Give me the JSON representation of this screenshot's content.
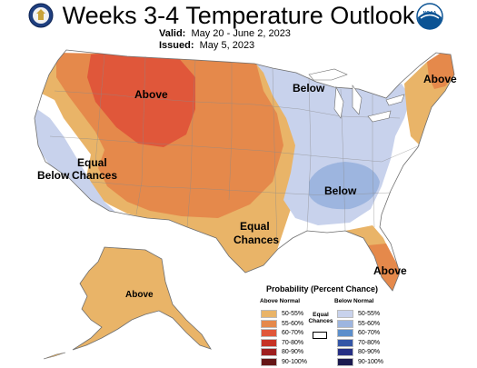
{
  "header": {
    "title": "Weeks 3-4 Temperature Outlook",
    "valid_label": "Valid:",
    "valid_value": "May 20 - June 2, 2023",
    "issued_label": "Issued:",
    "issued_value": "May 5, 2023"
  },
  "logos": {
    "left": "doc-seal-icon",
    "right": "noaa-logo-icon",
    "noaa_text": "NOAA"
  },
  "map_labels": {
    "above_west": "Above",
    "below_great_lakes": "Below",
    "above_new_england": "Above",
    "equal_chances_west_1": "Equal",
    "equal_chances_west_2": "Chances",
    "below_west_coast": "Below",
    "below_ohio_valley": "Below",
    "equal_chances_tx_1": "Equal",
    "equal_chances_tx_2": "Chances",
    "above_florida": "Above",
    "above_alaska": "Above"
  },
  "legend": {
    "title": "Probability (Percent Chance)",
    "above_header": "Above Normal",
    "below_header": "Below Normal",
    "equal_1": "Equal",
    "equal_2": "Chances",
    "above_items": [
      {
        "label": "50-55%",
        "color": "#E9B468"
      },
      {
        "label": "55-60%",
        "color": "#E5894B"
      },
      {
        "label": "60-70%",
        "color": "#E0573A"
      },
      {
        "label": "70-80%",
        "color": "#C63325"
      },
      {
        "label": "80-90%",
        "color": "#9E1F1F"
      },
      {
        "label": "90-100%",
        "color": "#641616"
      }
    ],
    "below_items": [
      {
        "label": "50-55%",
        "color": "#C8D2EC"
      },
      {
        "label": "55-60%",
        "color": "#9DB5DF"
      },
      {
        "label": "60-70%",
        "color": "#5C8ECB"
      },
      {
        "label": "70-80%",
        "color": "#3456A6"
      },
      {
        "label": "80-90%",
        "color": "#262F84"
      },
      {
        "label": "90-100%",
        "color": "#1B1A4F"
      }
    ]
  },
  "colors": {
    "outline": "#6e6e6e",
    "background": "#ffffff"
  }
}
